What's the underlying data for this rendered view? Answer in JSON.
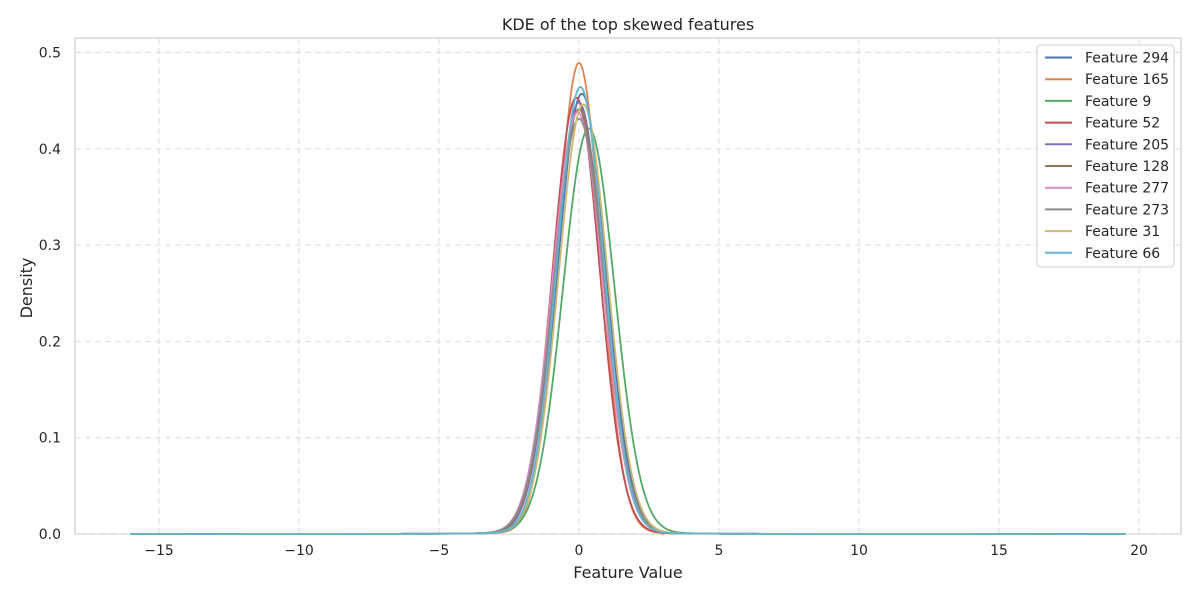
{
  "chart_data": {
    "type": "line",
    "title": "KDE of the top skewed features",
    "xlabel": "Feature Value",
    "ylabel": "Density",
    "xlim": [
      -18,
      21.5
    ],
    "ylim": [
      0,
      0.515
    ],
    "xticks": [
      -15,
      -10,
      -5,
      0,
      5,
      10,
      15,
      20
    ],
    "xtick_labels": [
      "−15",
      "−10",
      "−5",
      "0",
      "5",
      "10",
      "15",
      "20"
    ],
    "yticks": [
      0.0,
      0.1,
      0.2,
      0.3,
      0.4,
      0.5
    ],
    "ytick_labels": [
      "0.0",
      "0.1",
      "0.2",
      "0.3",
      "0.4",
      "0.5"
    ],
    "grid": true,
    "legend_position": "top-right",
    "series": [
      {
        "name": "Feature 294",
        "color": "#4c72b0",
        "center": 0.1,
        "peak": 0.456,
        "sigma": 0.86,
        "range": [
          -16,
          19.5
        ]
      },
      {
        "name": "Feature 165",
        "color": "#dd8452",
        "center": 0.0,
        "peak": 0.488,
        "sigma": 0.78,
        "range": [
          -15.5,
          17
        ]
      },
      {
        "name": "Feature 9",
        "color": "#55a868",
        "center": 0.35,
        "peak": 0.42,
        "sigma": 0.92,
        "range": [
          -12,
          15
        ]
      },
      {
        "name": "Feature 52",
        "color": "#c44e52",
        "center": -0.1,
        "peak": 0.452,
        "sigma": 0.84,
        "range": [
          -14,
          16
        ]
      },
      {
        "name": "Feature 205",
        "color": "#8172b3",
        "center": 0.0,
        "peak": 0.447,
        "sigma": 0.86,
        "range": [
          -14,
          18
        ]
      },
      {
        "name": "Feature 128",
        "color": "#937860",
        "center": 0.0,
        "peak": 0.44,
        "sigma": 0.88,
        "range": [
          -13,
          17
        ]
      },
      {
        "name": "Feature 277",
        "color": "#da8bc3",
        "center": -0.05,
        "peak": 0.437,
        "sigma": 0.89,
        "range": [
          -12,
          15
        ]
      },
      {
        "name": "Feature 273",
        "color": "#8c8c8c",
        "center": 0.0,
        "peak": 0.43,
        "sigma": 0.9,
        "range": [
          -13,
          16
        ]
      },
      {
        "name": "Feature 31",
        "color": "#ccb974",
        "center": 0.15,
        "peak": 0.445,
        "sigma": 0.87,
        "range": [
          -12,
          14
        ]
      },
      {
        "name": "Feature 66",
        "color": "#64b5cd",
        "center": 0.05,
        "peak": 0.463,
        "sigma": 0.84,
        "range": [
          -16,
          19.5
        ]
      }
    ]
  }
}
